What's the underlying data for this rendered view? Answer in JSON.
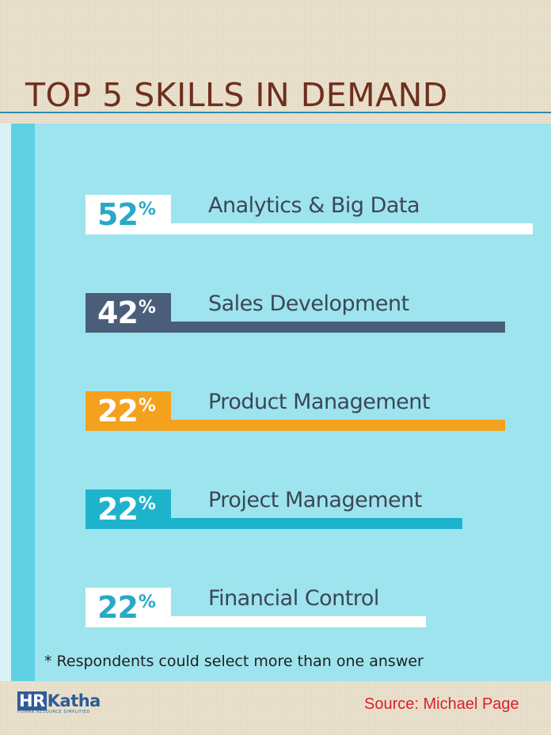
{
  "title": "TOP 5 SKILLS IN DEMAND",
  "chart_data": {
    "type": "bar",
    "categories": [
      "Analytics & Big Data",
      "Sales Development",
      "Product Management",
      "Project Management",
      "Financial Control"
    ],
    "values": [
      52,
      42,
      22,
      22,
      22
    ],
    "value_labels": [
      "52",
      "42",
      "22",
      "22",
      "22"
    ],
    "value_suffix": "%",
    "ylim": [
      0,
      100
    ]
  },
  "bars": [
    {
      "label": "Analytics & Big Data",
      "box_bg": "#ffffff",
      "text": "#27a9c7",
      "line": "#ffffff"
    },
    {
      "label": "Sales Development",
      "box_bg": "#4a5e7a",
      "text": "#ffffff",
      "line": "#4a5e7a"
    },
    {
      "label": "Product Management",
      "box_bg": "#f4a11d",
      "text": "#ffffff",
      "line": "#f4a11d"
    },
    {
      "label": "Project Management",
      "box_bg": "#1eb3cd",
      "text": "#ffffff",
      "line": "#1eb3cd"
    },
    {
      "label": "Financial Control",
      "box_bg": "#ffffff",
      "text": "#27a9c7",
      "line": "#ffffff"
    }
  ],
  "footnote": "* Respondents could select  more than one answer",
  "logo": {
    "hr": "HR",
    "rest": "Katha",
    "tagline": "HUMAN RESOURCE SIMPLIFIED"
  },
  "source": "Source: Michael Page"
}
